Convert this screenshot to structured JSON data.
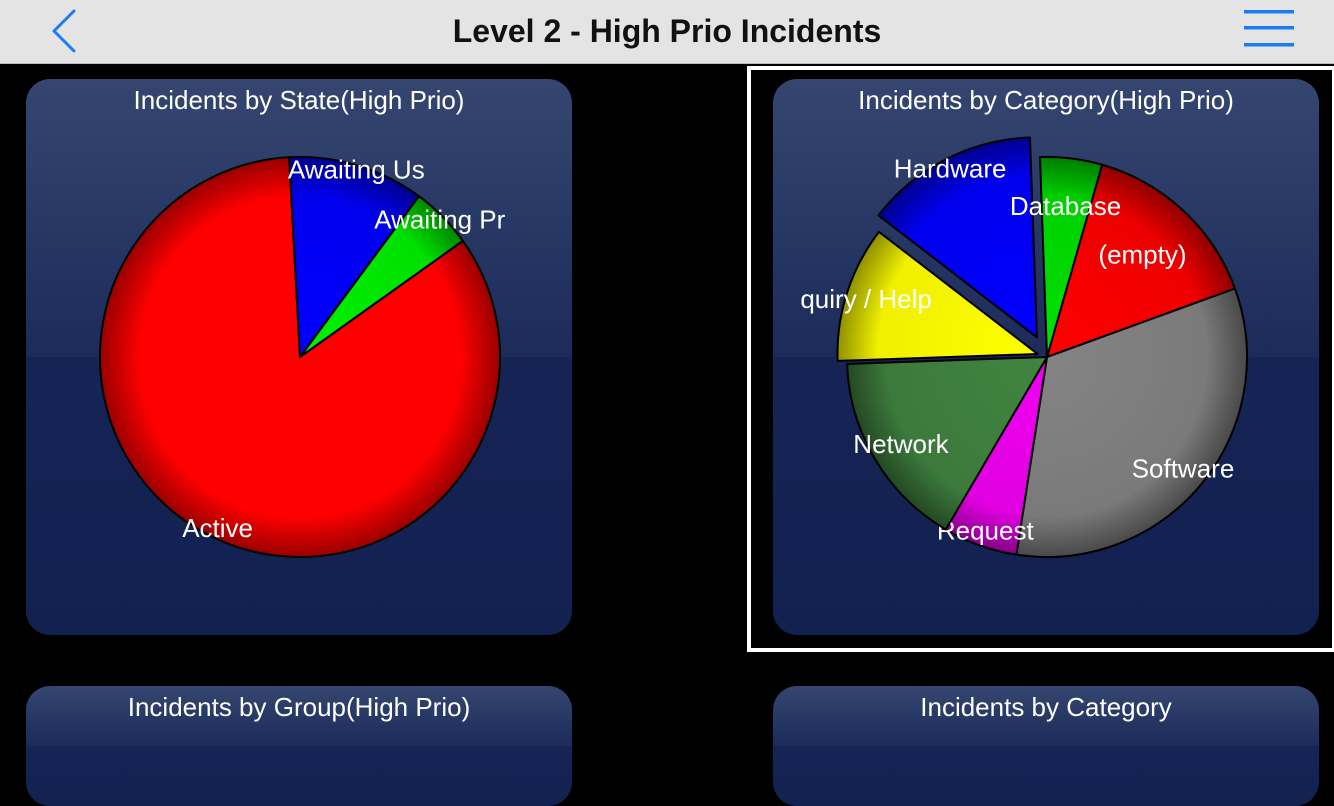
{
  "nav": {
    "title": "Level 2 - High Prio Incidents",
    "back_icon": "chevron-left-icon",
    "menu_icon": "hamburger-menu-icon",
    "accent": "#1a7cf0"
  },
  "cards": {
    "state": {
      "title": "Incidents by State(High Prio)"
    },
    "category_hp": {
      "title": "Incidents by Category(High Prio)"
    },
    "group": {
      "title": "Incidents by Group(High Prio)"
    },
    "category": {
      "title": "Incidents by Category"
    }
  },
  "chart_data": [
    {
      "type": "pie",
      "title": "Incidents by State(High Prio)",
      "slices": [
        {
          "label": "Active",
          "value": 84,
          "color": "#ff0000"
        },
        {
          "label": "Awaiting Us",
          "value": 11,
          "color": "#0000ee"
        },
        {
          "label": "Awaiting Pr",
          "value": 5,
          "color": "#00e000"
        }
      ]
    },
    {
      "type": "pie",
      "title": "Incidents by Category(High Prio)",
      "slices": [
        {
          "label": "(empty)",
          "value": 15,
          "color": "#ee0000"
        },
        {
          "label": "Software",
          "value": 33,
          "color": "#7a7a7a"
        },
        {
          "label": "Request",
          "value": 6,
          "color": "#e000e0"
        },
        {
          "label": "Network",
          "value": 16,
          "color": "#3c7a3c"
        },
        {
          "label": "quiry / Help",
          "value": 11,
          "color": "#f0f000"
        },
        {
          "label": "Hardware",
          "value": 14,
          "color": "#0000ee"
        },
        {
          "label": "Database",
          "value": 5,
          "color": "#00d000"
        }
      ]
    }
  ]
}
